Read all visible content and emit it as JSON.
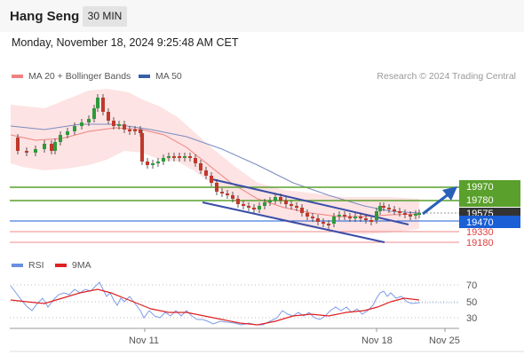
{
  "header": {
    "title": "Hang Seng",
    "timeframe_label": "30 MIN"
  },
  "datetime": "Monday, November 18, 2024 9:25:48 AM CET",
  "legend": {
    "ma_bb_label": "MA 20 + Bollinger Bands",
    "ma50_label": "MA 50",
    "credit": "Research © 2024 Trading Central",
    "colors": {
      "ma20": "#f08080",
      "bollinger_fill": "#fde0e0",
      "ma50": "#3a5ea8"
    }
  },
  "price_levels": [
    {
      "label": "19970",
      "type": "resistance",
      "color": "#5aa02c"
    },
    {
      "label": "19780",
      "type": "resistance",
      "color": "#5aa02c"
    },
    {
      "label": "19575",
      "type": "last",
      "color": "#333333"
    },
    {
      "label": "19470",
      "type": "pivot",
      "color": "#1a5fd6"
    },
    {
      "label": "19330",
      "type": "support",
      "color": "#e04040"
    },
    {
      "label": "19180",
      "type": "support",
      "color": "#e04040"
    }
  ],
  "rsi": {
    "label": "RSI",
    "ma_label": "9MA",
    "rsi_color": "#6a8fe0",
    "ma_color": "#e02020",
    "ticks": [
      "70",
      "50",
      "30"
    ]
  },
  "x_axis": {
    "ticks": [
      "Nov 11",
      "Nov 18",
      "Nov 25"
    ]
  }
}
